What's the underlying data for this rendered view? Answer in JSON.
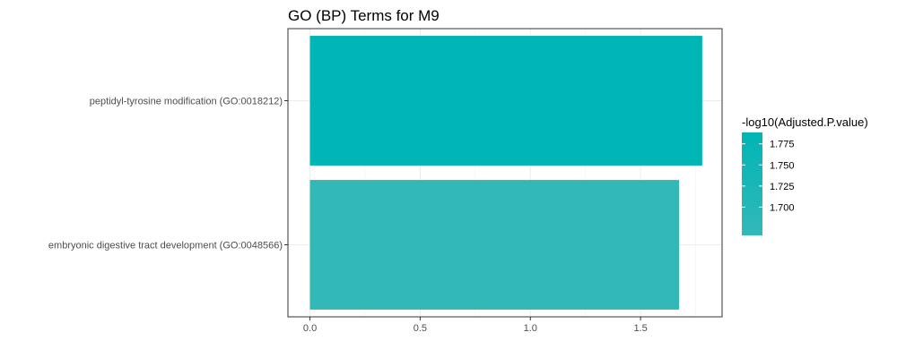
{
  "chart_data": {
    "type": "bar",
    "orientation": "horizontal",
    "title": "GO (BP) Terms for M9",
    "xlabel": "",
    "ylabel": "",
    "categories": [
      "peptidyl-tyrosine modification (GO:0018212)",
      "embryonic digestive tract development (GO:0048566)"
    ],
    "values": [
      1.78,
      1.675
    ],
    "xlim": [
      -0.1,
      1.87
    ],
    "x_ticks": [
      0.0,
      0.5,
      1.0,
      1.5
    ],
    "x_tick_labels": [
      "0.0",
      "0.5",
      "1.0",
      "1.5"
    ],
    "grid": true,
    "legend": {
      "title": "-log10(Adjusted.P.value)",
      "placement": "right",
      "range": [
        1.675,
        1.78
      ],
      "ticks": [
        1.775,
        1.75,
        1.725,
        1.7
      ],
      "tick_labels": [
        "1.775",
        "1.750",
        "1.725",
        "1.700"
      ],
      "color_low": "#33b8b8",
      "color_high": "#00b5b5"
    },
    "bar_colors": [
      "#00b5b5",
      "#33b8b8"
    ]
  }
}
